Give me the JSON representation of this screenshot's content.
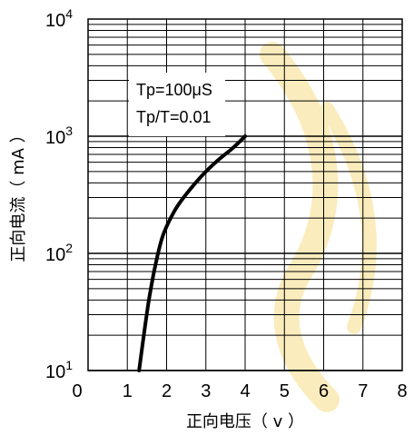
{
  "chart_data": {
    "type": "line",
    "x_scale": "linear",
    "y_scale": "log",
    "xlabel": "正向电压（ v ）",
    "ylabel": "正向电流（ mA ）",
    "xlim": [
      0,
      8
    ],
    "ylim": [
      10,
      10000
    ],
    "x_ticks": [
      "0",
      "1",
      "2",
      "3",
      "4",
      "5",
      "6",
      "7",
      "8"
    ],
    "y_ticks": [
      {
        "base": "10",
        "exp": "1"
      },
      {
        "base": "10",
        "exp": "2"
      },
      {
        "base": "10",
        "exp": "3"
      },
      {
        "base": "10",
        "exp": "4"
      }
    ],
    "grid": true,
    "annotation": [
      "Tp=100μS",
      "Tp/T=0.01"
    ],
    "series": [
      {
        "x": [
          1.3,
          1.42,
          1.55,
          1.7,
          1.9,
          2.2,
          2.5,
          2.9,
          3.3,
          3.7,
          4.0
        ],
        "y": [
          10,
          20,
          40,
          75,
          140,
          230,
          320,
          460,
          620,
          800,
          1000
        ]
      }
    ]
  },
  "colors": {
    "background": "#ffffff",
    "line": "#000000",
    "watermark": "#f6dd88"
  }
}
